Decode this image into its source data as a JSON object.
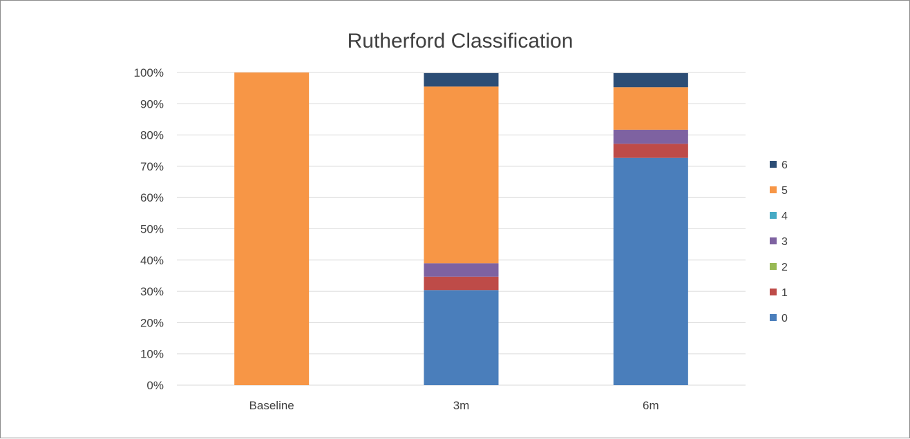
{
  "chart_data": {
    "type": "bar",
    "stacked": true,
    "percent": true,
    "title": "Rutherford Classification",
    "xlabel": "",
    "ylabel": "",
    "ylim": [
      0,
      100
    ],
    "yticks": [
      0,
      10,
      20,
      30,
      40,
      50,
      60,
      70,
      80,
      90,
      100
    ],
    "ytick_labels": [
      "0%",
      "10%",
      "20%",
      "30%",
      "40%",
      "50%",
      "60%",
      "70%",
      "80%",
      "90%",
      "100%"
    ],
    "grid": true,
    "legend_position": "right",
    "categories": [
      "Baseline",
      "3m",
      "6m"
    ],
    "series": [
      {
        "name": "0",
        "color": "#4a7ebb",
        "values": [
          0,
          30.4,
          72.7
        ]
      },
      {
        "name": "1",
        "color": "#be4b48",
        "values": [
          0,
          4.3,
          4.5
        ]
      },
      {
        "name": "2",
        "color": "#98b954",
        "values": [
          0,
          0,
          0
        ]
      },
      {
        "name": "3",
        "color": "#7e62a1",
        "values": [
          0,
          4.3,
          4.5
        ]
      },
      {
        "name": "4",
        "color": "#46aac5",
        "values": [
          0,
          0,
          0
        ]
      },
      {
        "name": "5",
        "color": "#f79646",
        "values": [
          100,
          56.5,
          13.6
        ]
      },
      {
        "name": "6",
        "color": "#2c4d75",
        "values": [
          0,
          4.3,
          4.5
        ]
      }
    ]
  }
}
